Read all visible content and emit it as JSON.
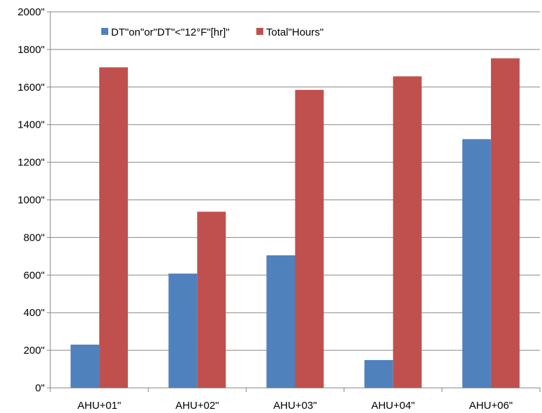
{
  "chart_data": {
    "type": "bar",
    "categories": [
      "AHU-01\"",
      "AHU-02\"",
      "AHU-03\"",
      "AHU-04\"",
      "AHU-06\""
    ],
    "category_labels": [
      "AHU+01\"",
      "AHU+02\"",
      "AHU+03\"",
      "AHU+04\"",
      "AHU+06\""
    ],
    "series": [
      {
        "name": "DT\"on\"or\"DT\"<\"12°F\"[hr]\"",
        "color": "#4F81BD",
        "values": [
          230,
          608,
          705,
          148,
          1323
        ]
      },
      {
        "name": "Total\"Hours\"",
        "color": "#C0504D",
        "values": [
          1705,
          937,
          1585,
          1657,
          1753
        ]
      }
    ],
    "y_ticks": [
      "0\"",
      "200\"",
      "400\"",
      "600\"",
      "800\"",
      "1000\"",
      "1200\"",
      "1400\"",
      "1600\"",
      "1800\"",
      "2000\""
    ],
    "ylim": [
      0,
      2000
    ],
    "y_step": 200,
    "title": "",
    "xlabel": "",
    "ylabel": "",
    "grid": true,
    "legend": "top-left"
  }
}
